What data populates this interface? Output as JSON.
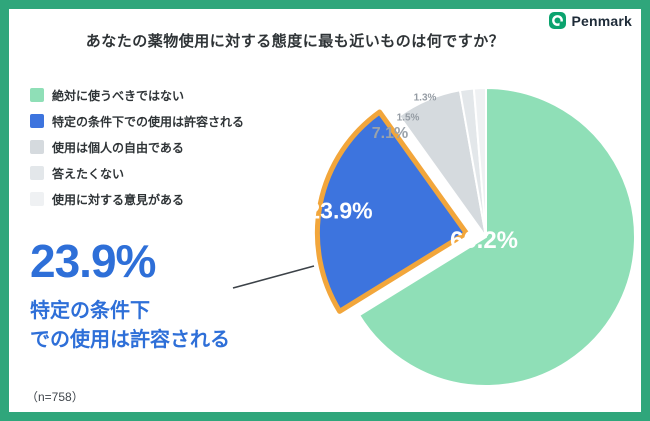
{
  "header": {
    "logo_text": "Penmark"
  },
  "title": "あなたの薬物使用に対する態度に最も近いものは何ですか？",
  "legend": {
    "items": [
      {
        "label": "絶対に使うべきではない",
        "color": "#8FDFB7"
      },
      {
        "label": "特定の条件下での使用は許容される",
        "color": "#3D74DE"
      },
      {
        "label": "使用は個人の自由である",
        "color": "#D5DADE"
      },
      {
        "label": "答えたくない",
        "color": "#E3E7EA"
      },
      {
        "label": "使用に対する意見がある",
        "color": "#EFF1F3"
      }
    ]
  },
  "callout": {
    "percent": "23.9%",
    "line1": "特定の条件下",
    "line2": "での使用は許容される"
  },
  "note": "（n=758）",
  "colors": {
    "frame_green": "#2FA67B",
    "brand_green": "#0BA36E",
    "accent_blue": "#2E6FD8",
    "highlight_stroke": "#F2A63B"
  },
  "chart_data": {
    "type": "pie",
    "title": "あなたの薬物使用に対する態度に最も近いものは何ですか？",
    "categories": [
      "絶対に使うべきではない",
      "特定の条件下での使用は許容される",
      "使用は個人の自由である",
      "答えたくない",
      "使用に対する意見がある"
    ],
    "values": [
      66.2,
      23.9,
      7.1,
      1.5,
      1.3
    ],
    "display_labels": [
      "66.2%",
      "23.9%",
      "7.1%",
      "1.5%",
      "1.3%"
    ],
    "colors": [
      "#8FDFB7",
      "#3D74DE",
      "#D5DADE",
      "#E3E7EA",
      "#EFF1F3"
    ],
    "explode_index": 1,
    "explode_stroke": "#F2A63B",
    "legend_position": "left",
    "sample_note": "（n=758）"
  }
}
